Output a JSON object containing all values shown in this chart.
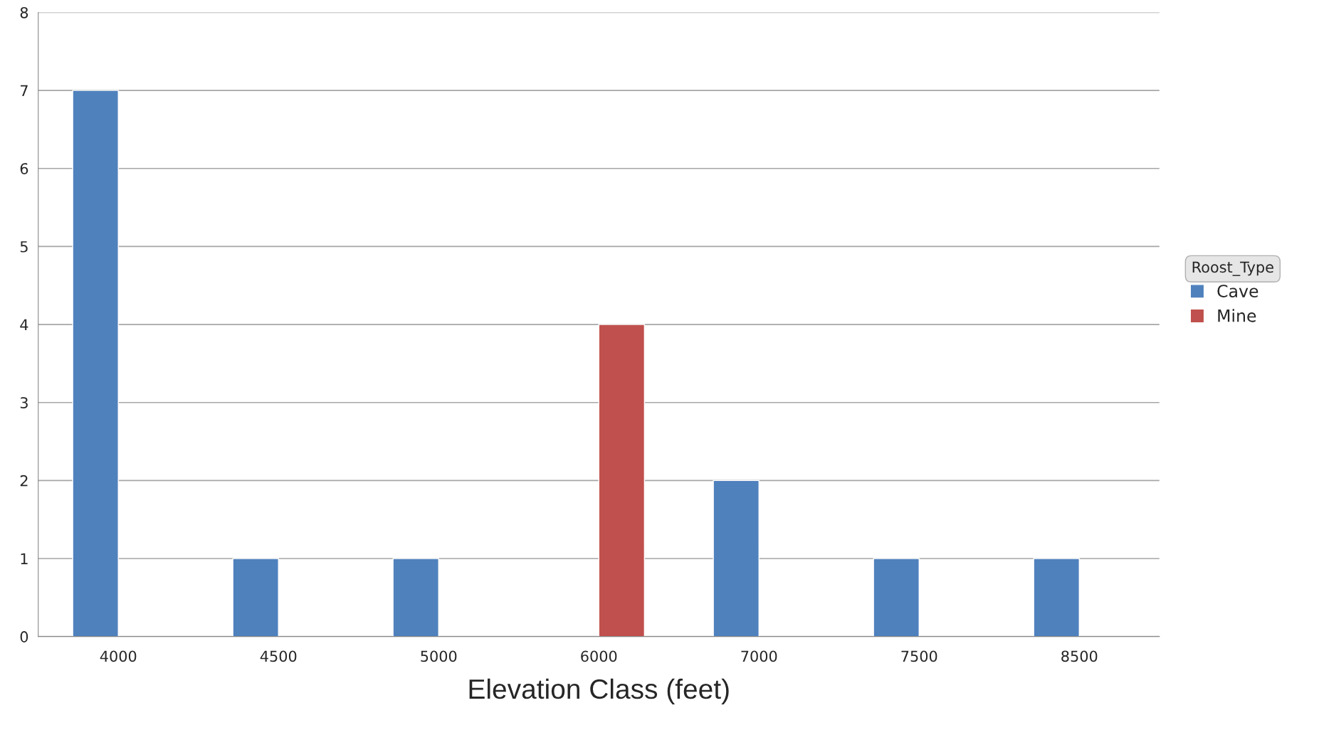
{
  "chart_data": {
    "type": "bar",
    "xlabel": "Elevation Class (feet)",
    "legend_title": "Roost_Type",
    "categories": [
      "4000",
      "4500",
      "5000",
      "6000",
      "7000",
      "7500",
      "8500"
    ],
    "series": [
      {
        "name": "Cave",
        "color": "#4f81bd",
        "values": [
          7,
          1,
          1,
          null,
          2,
          1,
          1
        ]
      },
      {
        "name": "Mine",
        "color": "#c0504d",
        "values": [
          null,
          null,
          null,
          4,
          null,
          null,
          null
        ]
      }
    ],
    "ylim": [
      0,
      8
    ],
    "yticks": [
      0,
      1,
      2,
      3,
      4,
      5,
      6,
      7,
      8
    ],
    "grid": "y",
    "legend": "right"
  }
}
